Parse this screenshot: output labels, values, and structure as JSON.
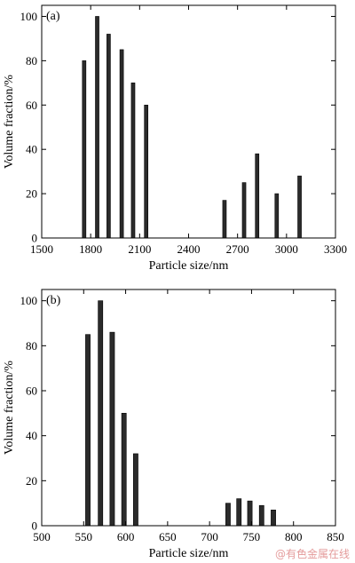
{
  "chart_data": [
    {
      "type": "bar",
      "panel_label": "(a)",
      "xlabel": "Particle size/nm",
      "ylabel": "Volume fraction/%",
      "xlim": [
        1500,
        3300
      ],
      "ylim": [
        0,
        105
      ],
      "xticks": [
        1500,
        1800,
        2100,
        2400,
        2700,
        3000,
        3300
      ],
      "yticks": [
        0,
        20,
        40,
        60,
        80,
        100
      ],
      "bar_width": 22,
      "x": [
        1760,
        1840,
        1910,
        1990,
        2060,
        2140,
        2620,
        2740,
        2820,
        2940,
        3080
      ],
      "values": [
        80,
        100,
        92,
        85,
        70,
        60,
        17,
        25,
        38,
        20,
        28
      ],
      "grid": false
    },
    {
      "type": "bar",
      "panel_label": "(b)",
      "xlabel": "Particle size/nm",
      "ylabel": "Volume fraction/%",
      "xlim": [
        500,
        850
      ],
      "ylim": [
        0,
        105
      ],
      "xticks": [
        500,
        550,
        600,
        650,
        700,
        750,
        800,
        850
      ],
      "yticks": [
        0,
        20,
        40,
        60,
        80,
        100
      ],
      "bar_width": 5.5,
      "x": [
        555,
        570,
        584,
        598,
        612,
        722,
        735,
        748,
        762,
        776
      ],
      "values": [
        85,
        100,
        86,
        50,
        32,
        10,
        12,
        11,
        9,
        7
      ],
      "grid": false
    }
  ],
  "watermark": "@有色金属在线",
  "colors": {
    "bar_fill": "#2b2b2b",
    "axis": "#000000"
  }
}
